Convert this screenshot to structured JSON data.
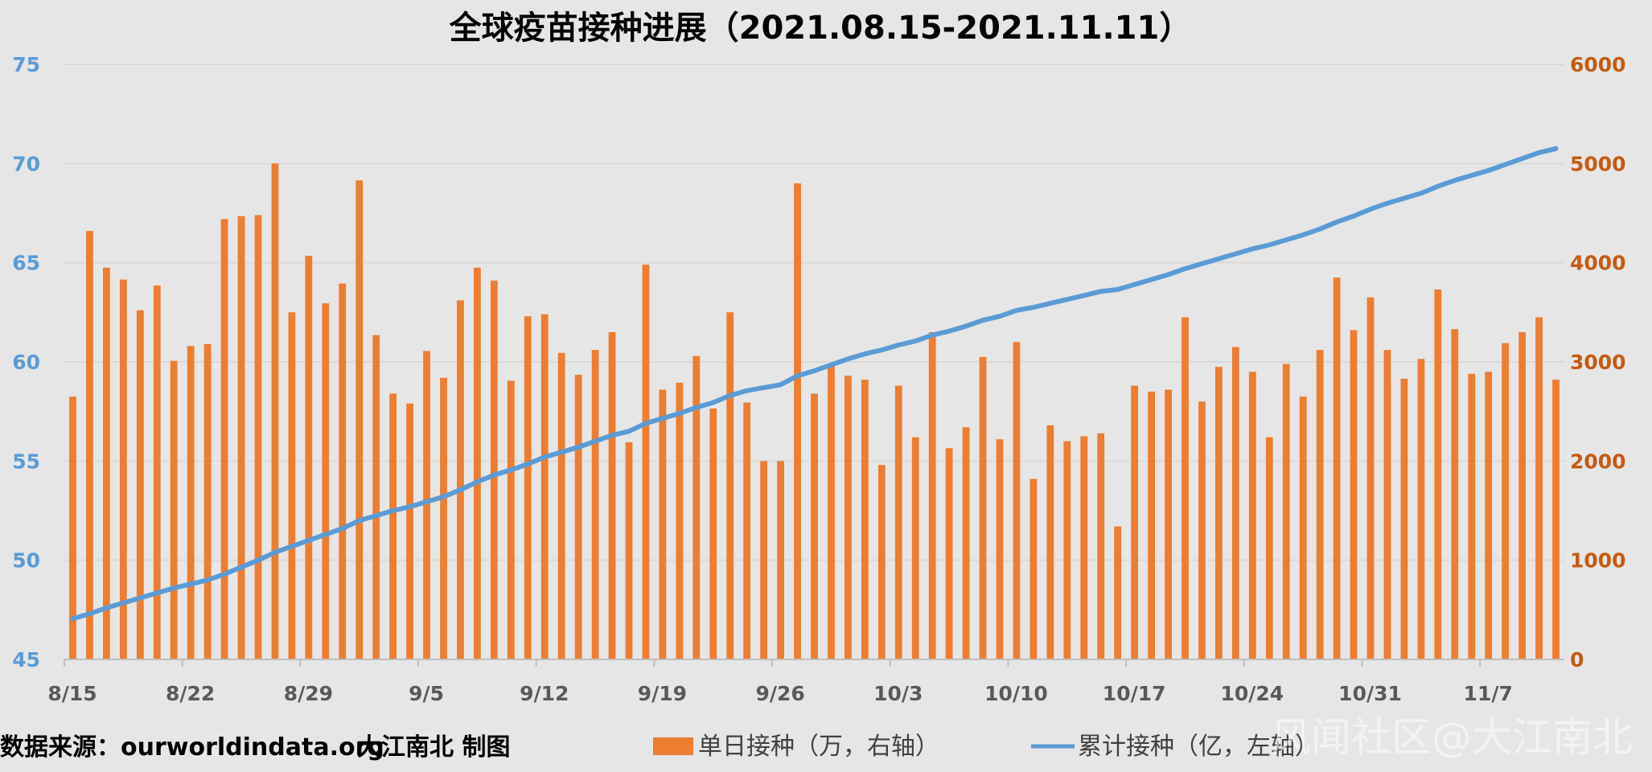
{
  "title": "全球疫苗接种进展（2021.08.15-2021.11.11）",
  "footer": {
    "source": "数据来源：ourworldindata.org",
    "author": "大江南北 制图"
  },
  "watermark": "风闻社区@大江南北",
  "colors": {
    "bar": "#ed7d31",
    "line": "#5b9bd5",
    "left_axis": "#5b9bd5",
    "right_axis": "#c55a11",
    "grid": "#d9d9d9",
    "background": "#e6e6e6"
  },
  "chart_data": {
    "type": "bar+line",
    "start_date": "2021-08-15",
    "end_date": "2021-11-11",
    "x_tick_labels": [
      "8/15",
      "8/22",
      "8/29",
      "9/5",
      "9/12",
      "9/19",
      "9/26",
      "10/3",
      "10/10",
      "10/17",
      "10/24",
      "10/31",
      "11/7"
    ],
    "left_axis": {
      "min": 45,
      "max": 75,
      "ticks": [
        45,
        50,
        55,
        60,
        65,
        70,
        75
      ]
    },
    "right_axis": {
      "min": 0,
      "max": 6000,
      "ticks": [
        0,
        1000,
        2000,
        3000,
        4000,
        5000,
        6000
      ]
    },
    "grid": true,
    "legend_position": "bottom",
    "series": [
      {
        "name": "单日接种（万，右轴）",
        "type": "bar",
        "axis": "right",
        "values": [
          2650,
          4320,
          3950,
          3830,
          3520,
          3770,
          3010,
          3160,
          3180,
          4440,
          4470,
          4480,
          5000,
          3500,
          4070,
          3590,
          3790,
          4830,
          3270,
          2680,
          2580,
          3110,
          2840,
          3620,
          3950,
          3820,
          2810,
          3460,
          3480,
          3090,
          2870,
          3120,
          3300,
          2190,
          3980,
          2720,
          2790,
          3060,
          2530,
          3500,
          2590,
          2000,
          2000,
          4800,
          2680,
          2960,
          2860,
          2820,
          1960,
          2760,
          2240,
          3300,
          2130,
          2340,
          3050,
          2220,
          3200,
          1820,
          2360,
          2200,
          2250,
          2280,
          1340,
          2760,
          2700,
          2720,
          3450,
          2600,
          2950,
          3150,
          2900,
          2240,
          2980,
          2650,
          3120,
          3850,
          3320,
          3650,
          3120,
          2830,
          3030,
          3730,
          3330,
          2880,
          2900,
          3190,
          3300,
          3450,
          2820
        ]
      },
      {
        "name": "累计接种（亿，左轴）",
        "type": "line",
        "axis": "left",
        "values": [
          47.05,
          47.3,
          47.6,
          47.85,
          48.1,
          48.35,
          48.6,
          48.8,
          49.0,
          49.3,
          49.65,
          50.0,
          50.4,
          50.7,
          51.0,
          51.3,
          51.6,
          52.0,
          52.25,
          52.5,
          52.7,
          52.95,
          53.2,
          53.55,
          53.95,
          54.3,
          54.55,
          54.85,
          55.2,
          55.45,
          55.7,
          56.0,
          56.3,
          56.5,
          56.9,
          57.15,
          57.4,
          57.7,
          57.95,
          58.3,
          58.55,
          58.7,
          58.85,
          59.3,
          59.55,
          59.85,
          60.15,
          60.4,
          60.6,
          60.85,
          61.05,
          61.35,
          61.55,
          61.8,
          62.1,
          62.3,
          62.6,
          62.75,
          62.95,
          63.15,
          63.35,
          63.55,
          63.65,
          63.9,
          64.15,
          64.4,
          64.7,
          64.95,
          65.2,
          65.45,
          65.7,
          65.9,
          66.15,
          66.4,
          66.7,
          67.05,
          67.35,
          67.7,
          68.0,
          68.25,
          68.5,
          68.85,
          69.15,
          69.4,
          69.65,
          69.95,
          70.25,
          70.55,
          70.75
        ]
      }
    ]
  }
}
